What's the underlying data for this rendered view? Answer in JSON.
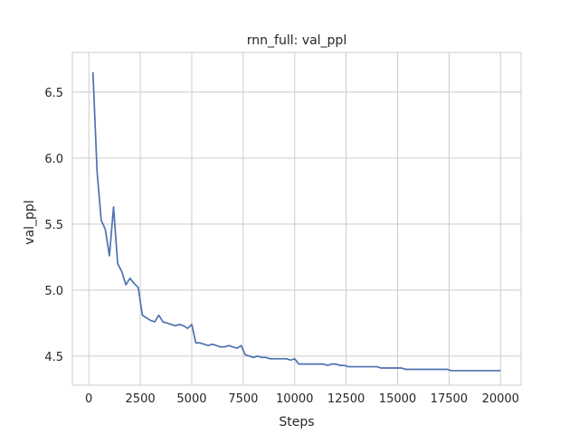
{
  "chart_data": {
    "type": "line",
    "title": "rnn_full: val_ppl",
    "xlabel": "Steps",
    "ylabel": "val_ppl",
    "xlim": [
      -800,
      21000
    ],
    "ylim": [
      4.28,
      6.8
    ],
    "xticks": [
      0,
      2500,
      5000,
      7500,
      10000,
      12500,
      15000,
      17500,
      20000
    ],
    "yticks": [
      4.5,
      5.0,
      5.5,
      6.0,
      6.5
    ],
    "xtick_labels": [
      "0",
      "2500",
      "5000",
      "7500",
      "10000",
      "12500",
      "15000",
      "17500",
      "20000"
    ],
    "ytick_labels": [
      "4.5",
      "5.0",
      "5.5",
      "6.0",
      "6.5"
    ],
    "grid": true,
    "line_color": "#4c72b0",
    "series": [
      {
        "x": [
          200,
          400,
          600,
          800,
          1000,
          1200,
          1400,
          1600,
          1800,
          2000,
          2200,
          2400,
          2600,
          2800,
          3000,
          3200,
          3400,
          3600,
          3800,
          4000,
          4200,
          4400,
          4600,
          4800,
          5000,
          5200,
          5400,
          5600,
          5800,
          6000,
          6200,
          6400,
          6600,
          6800,
          7000,
          7200,
          7400,
          7600,
          7800,
          8000,
          8200,
          8400,
          8600,
          8800,
          9000,
          9200,
          9400,
          9600,
          9800,
          10000,
          10200,
          10400,
          10600,
          10800,
          11000,
          11200,
          11400,
          11600,
          11800,
          12000,
          12200,
          12400,
          12600,
          12800,
          13000,
          13200,
          13400,
          13600,
          13800,
          14000,
          14200,
          14400,
          14600,
          14800,
          15000,
          15200,
          15400,
          15600,
          15800,
          16000,
          16200,
          16400,
          16600,
          16800,
          17000,
          17200,
          17400,
          17600,
          17800,
          18000,
          18200,
          18400,
          18600,
          18800,
          19000,
          19200,
          19400,
          19600,
          19800,
          20000
        ],
        "values": [
          6.65,
          5.9,
          5.53,
          5.46,
          5.26,
          5.63,
          5.2,
          5.14,
          5.04,
          5.09,
          5.05,
          5.02,
          4.81,
          4.79,
          4.77,
          4.76,
          4.81,
          4.76,
          4.75,
          4.74,
          4.73,
          4.74,
          4.73,
          4.71,
          4.74,
          4.6,
          4.6,
          4.59,
          4.58,
          4.59,
          4.58,
          4.57,
          4.57,
          4.58,
          4.57,
          4.56,
          4.58,
          4.51,
          4.5,
          4.49,
          4.5,
          4.49,
          4.49,
          4.48,
          4.48,
          4.48,
          4.48,
          4.48,
          4.47,
          4.48,
          4.44,
          4.44,
          4.44,
          4.44,
          4.44,
          4.44,
          4.44,
          4.43,
          4.44,
          4.44,
          4.43,
          4.43,
          4.42,
          4.42,
          4.42,
          4.42,
          4.42,
          4.42,
          4.42,
          4.42,
          4.41,
          4.41,
          4.41,
          4.41,
          4.41,
          4.41,
          4.4,
          4.4,
          4.4,
          4.4,
          4.4,
          4.4,
          4.4,
          4.4,
          4.4,
          4.4,
          4.4,
          4.39,
          4.39,
          4.39,
          4.39,
          4.39,
          4.39,
          4.39,
          4.39,
          4.39,
          4.39,
          4.39,
          4.39,
          4.39
        ]
      }
    ]
  }
}
